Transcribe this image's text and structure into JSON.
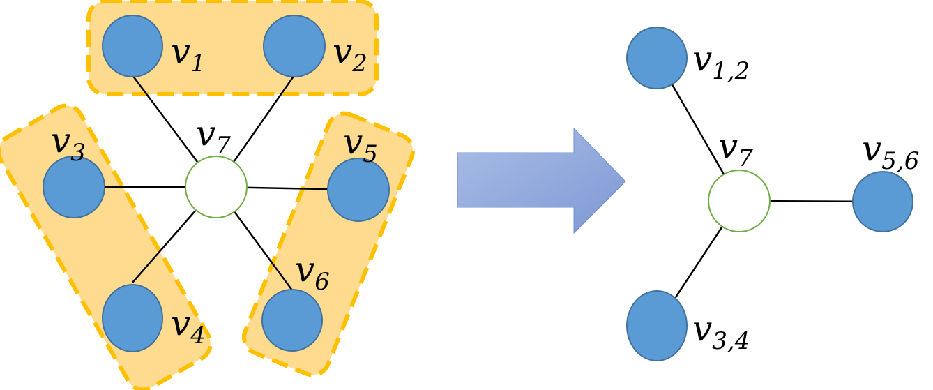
{
  "diagram": {
    "left_graph": {
      "nodes": [
        {
          "id": "v1",
          "main": "v",
          "sub": "1"
        },
        {
          "id": "v2",
          "main": "v",
          "sub": "2"
        },
        {
          "id": "v3",
          "main": "v",
          "sub": "3"
        },
        {
          "id": "v4",
          "main": "v",
          "sub": "4"
        },
        {
          "id": "v5",
          "main": "v",
          "sub": "5"
        },
        {
          "id": "v6",
          "main": "v",
          "sub": "6"
        },
        {
          "id": "v7",
          "main": "v",
          "sub": "7"
        }
      ],
      "edges": [
        [
          "v7",
          "v1"
        ],
        [
          "v7",
          "v2"
        ],
        [
          "v7",
          "v3"
        ],
        [
          "v7",
          "v4"
        ],
        [
          "v7",
          "v5"
        ],
        [
          "v7",
          "v6"
        ]
      ],
      "groups": [
        [
          "v1",
          "v2"
        ],
        [
          "v3",
          "v4"
        ],
        [
          "v5",
          "v6"
        ]
      ]
    },
    "right_graph": {
      "nodes": [
        {
          "id": "v12",
          "main": "v",
          "sub": "1,2"
        },
        {
          "id": "v34",
          "main": "v",
          "sub": "3,4"
        },
        {
          "id": "v56",
          "main": "v",
          "sub": "5,6"
        },
        {
          "id": "v7r",
          "main": "v",
          "sub": "7"
        }
      ],
      "edges": [
        [
          "v7r",
          "v12"
        ],
        [
          "v7r",
          "v34"
        ],
        [
          "v7r",
          "v56"
        ]
      ]
    },
    "colors": {
      "node_fill": "#5b9bd5",
      "node_stroke": "#41719c",
      "center_stroke": "#70ad47",
      "group_fill": "#ffd98a",
      "group_stroke": "#ffc000",
      "arrow_fill": "#8ea9db"
    }
  }
}
